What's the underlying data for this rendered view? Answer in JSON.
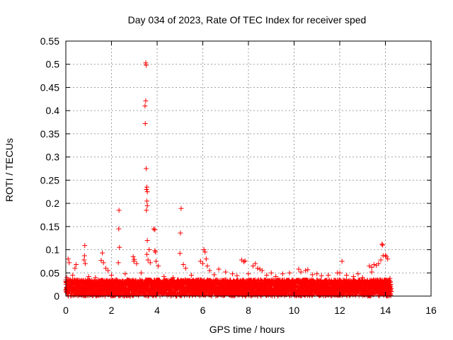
{
  "chart_data": {
    "type": "scatter",
    "title": "Day 034 of 2023, Rate Of TEC Index for receiver sped",
    "xlabel": "GPS time / hours",
    "ylabel": "ROTI / TECUs",
    "xlim": [
      0,
      16
    ],
    "ylim": [
      0,
      0.55
    ],
    "xticks": [
      "0",
      "2",
      "4",
      "6",
      "8",
      "10",
      "12",
      "14",
      "16"
    ],
    "yticks": [
      "0",
      "0.05",
      "0.1",
      "0.15",
      "0.2",
      "0.25",
      "0.3",
      "0.35",
      "0.4",
      "0.45",
      "0.5",
      "0.55"
    ],
    "grid": true,
    "marker": "+",
    "marker_color": "#ff0000",
    "series": [
      {
        "name": "ROTI",
        "points": [
          [
            3.5,
            0.503
          ],
          [
            3.52,
            0.498
          ],
          [
            3.5,
            0.421
          ],
          [
            3.47,
            0.41
          ],
          [
            3.48,
            0.372
          ],
          [
            3.52,
            0.275
          ],
          [
            3.55,
            0.235
          ],
          [
            3.53,
            0.23
          ],
          [
            3.57,
            0.225
          ],
          [
            3.55,
            0.205
          ],
          [
            3.57,
            0.195
          ],
          [
            3.53,
            0.185
          ],
          [
            2.33,
            0.185
          ],
          [
            5.05,
            0.189
          ],
          [
            3.85,
            0.145
          ],
          [
            3.9,
            0.143
          ],
          [
            2.32,
            0.145
          ],
          [
            5.02,
            0.136
          ],
          [
            3.57,
            0.12
          ],
          [
            0.83,
            0.109
          ],
          [
            2.35,
            0.105
          ],
          [
            3.65,
            0.1
          ],
          [
            3.9,
            0.098
          ],
          [
            3.93,
            0.095
          ],
          [
            6.05,
            0.1
          ],
          [
            6.1,
            0.095
          ],
          [
            1.6,
            0.093
          ],
          [
            5.0,
            0.092
          ],
          [
            3.55,
            0.09
          ],
          [
            13.85,
            0.112
          ],
          [
            13.88,
            0.11
          ],
          [
            13.9,
            0.087
          ],
          [
            14.05,
            0.085
          ],
          [
            14.0,
            0.088
          ],
          [
            0.82,
            0.087
          ],
          [
            0.1,
            0.08
          ],
          [
            0.15,
            0.072
          ],
          [
            0.45,
            0.068
          ],
          [
            0.4,
            0.06
          ],
          [
            0.8,
            0.078
          ],
          [
            0.85,
            0.07
          ],
          [
            1.55,
            0.077
          ],
          [
            1.65,
            0.072
          ],
          [
            1.75,
            0.06
          ],
          [
            1.85,
            0.055
          ],
          [
            2.3,
            0.072
          ],
          [
            2.95,
            0.085
          ],
          [
            3.0,
            0.079
          ],
          [
            2.98,
            0.075
          ],
          [
            3.1,
            0.07
          ],
          [
            3.6,
            0.078
          ],
          [
            3.7,
            0.072
          ],
          [
            3.95,
            0.075
          ],
          [
            4.05,
            0.065
          ],
          [
            5.15,
            0.068
          ],
          [
            5.25,
            0.06
          ],
          [
            5.9,
            0.075
          ],
          [
            6.0,
            0.07
          ],
          [
            6.15,
            0.08
          ],
          [
            6.2,
            0.065
          ],
          [
            6.3,
            0.055
          ],
          [
            6.7,
            0.058
          ],
          [
            7.0,
            0.052
          ],
          [
            7.3,
            0.048
          ],
          [
            7.7,
            0.078
          ],
          [
            7.8,
            0.074
          ],
          [
            7.85,
            0.076
          ],
          [
            8.2,
            0.065
          ],
          [
            8.3,
            0.07
          ],
          [
            8.4,
            0.06
          ],
          [
            8.5,
            0.058
          ],
          [
            8.6,
            0.055
          ],
          [
            9.0,
            0.05
          ],
          [
            9.5,
            0.048
          ],
          [
            9.8,
            0.05
          ],
          [
            10.2,
            0.058
          ],
          [
            10.3,
            0.052
          ],
          [
            10.5,
            0.055
          ],
          [
            10.6,
            0.057
          ],
          [
            11.0,
            0.048
          ],
          [
            11.5,
            0.045
          ],
          [
            11.9,
            0.05
          ],
          [
            12.1,
            0.075
          ],
          [
            12.3,
            0.045
          ],
          [
            12.8,
            0.048
          ],
          [
            13.3,
            0.065
          ],
          [
            13.4,
            0.062
          ],
          [
            13.5,
            0.068
          ],
          [
            13.6,
            0.066
          ],
          [
            13.4,
            0.052
          ],
          [
            13.7,
            0.07
          ],
          [
            13.8,
            0.078
          ],
          [
            14.1,
            0.08
          ],
          [
            0.05,
            0.04
          ],
          [
            0.3,
            0.045
          ],
          [
            1.0,
            0.042
          ],
          [
            1.3,
            0.04
          ],
          [
            2.0,
            0.045
          ],
          [
            2.6,
            0.048
          ],
          [
            3.3,
            0.05
          ],
          [
            4.3,
            0.042
          ],
          [
            4.7,
            0.04
          ],
          [
            5.5,
            0.045
          ],
          [
            6.5,
            0.046
          ],
          [
            7.5,
            0.044
          ],
          [
            8.0,
            0.048
          ],
          [
            8.8,
            0.045
          ],
          [
            9.2,
            0.042
          ],
          [
            10.8,
            0.046
          ],
          [
            11.2,
            0.044
          ],
          [
            12.0,
            0.05
          ],
          [
            12.6,
            0.042
          ],
          [
            13.0,
            0.04
          ],
          [
            14.2,
            0.038
          ]
        ],
        "dense_band": {
          "x_range": [
            0.0,
            14.25
          ],
          "y_range": [
            0.0,
            0.035
          ],
          "note": "continuous dense cloud of + markers between 0 and ~0.035 over the full time span"
        }
      }
    ]
  }
}
